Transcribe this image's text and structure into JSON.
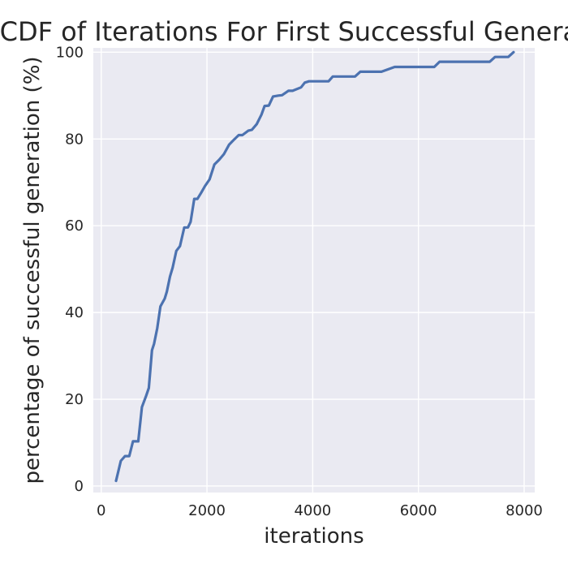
{
  "chart_data": {
    "type": "line",
    "title": "CDF of Iterations For First Successful Generation",
    "xlabel": "iterations",
    "ylabel": "percentage of successful generation (%)",
    "xlim": [
      -150,
      8200
    ],
    "ylim": [
      -1.5,
      101
    ],
    "xticks": [
      0,
      2000,
      4000,
      6000,
      8000
    ],
    "yticks": [
      0,
      20,
      40,
      60,
      80,
      100
    ],
    "grid": true,
    "legend": "none",
    "colors": {
      "line": "#4c72b0",
      "plot_bg": "#eaeaf2",
      "grid": "#ffffff",
      "text": "#262626"
    },
    "series": [
      {
        "x": [
          280,
          370,
          450,
          530,
          600,
          700,
          770,
          850,
          900,
          960,
          1000,
          1060,
          1120,
          1200,
          1240,
          1300,
          1350,
          1420,
          1490,
          1570,
          1640,
          1690,
          1760,
          1820,
          1890,
          1960,
          2050,
          2140,
          2230,
          2320,
          2420,
          2500,
          2600,
          2670,
          2780,
          2850,
          2940,
          3030,
          3090,
          3170,
          3250,
          3350,
          3420,
          3540,
          3620,
          3780,
          3850,
          3930,
          3980,
          4020,
          4120,
          4200,
          4300,
          4380,
          4440,
          4520,
          4650,
          4800,
          4900,
          5020,
          5100,
          5300,
          5550,
          5620,
          5800,
          6000,
          6300,
          6400,
          6600,
          7000,
          7350,
          7450,
          7700,
          7800
        ],
        "y": [
          1.2,
          5.8,
          6.9,
          6.9,
          10.3,
          10.3,
          18.2,
          20.8,
          22.6,
          31.3,
          32.8,
          36.4,
          41.4,
          43.2,
          44.8,
          48.3,
          50.3,
          54.2,
          55.3,
          59.6,
          59.6,
          60.9,
          66.2,
          66.2,
          67.6,
          69.1,
          70.7,
          74.1,
          75.2,
          76.5,
          78.7,
          79.7,
          80.9,
          80.9,
          81.9,
          82.1,
          83.4,
          85.6,
          87.6,
          87.7,
          89.8,
          90.0,
          90.1,
          91.1,
          91.1,
          91.9,
          93.0,
          93.3,
          93.3,
          93.3,
          93.3,
          93.3,
          93.3,
          94.4,
          94.4,
          94.4,
          94.4,
          94.4,
          95.5,
          95.5,
          95.5,
          95.5,
          96.6,
          96.6,
          96.6,
          96.6,
          96.6,
          97.8,
          97.8,
          97.8,
          97.8,
          98.9,
          98.9,
          100
        ]
      }
    ]
  }
}
